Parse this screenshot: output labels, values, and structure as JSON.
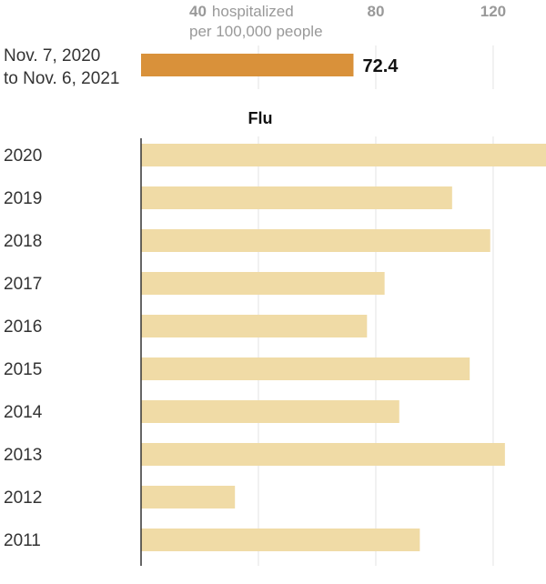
{
  "chart_data": {
    "type": "bar",
    "orientation": "horizontal",
    "xlim": [
      0,
      138
    ],
    "gridlines": [
      40,
      80,
      120
    ],
    "axis": {
      "ticks": [
        {
          "value": 40,
          "label": "40",
          "unit_lines": [
            "hospitalized",
            "per 100,000 people"
          ]
        },
        {
          "value": 80,
          "label": "80"
        },
        {
          "value": 120,
          "label": "120"
        }
      ]
    },
    "highlight": {
      "category_lines": [
        "Nov. 7, 2020",
        "to Nov. 6, 2021"
      ],
      "value": 72.4,
      "value_label": "72.4",
      "color": "#d9913a"
    },
    "section_title": "Flu",
    "series": [
      {
        "color": "#f0dba6",
        "categories": [
          "2020",
          "2019",
          "2018",
          "2017",
          "2016",
          "2015",
          "2014",
          "2013",
          "2012",
          "2011"
        ],
        "values": [
          138,
          106,
          119,
          83,
          77,
          112,
          88,
          124,
          32,
          95
        ]
      }
    ],
    "grid": true,
    "legend": "none"
  }
}
